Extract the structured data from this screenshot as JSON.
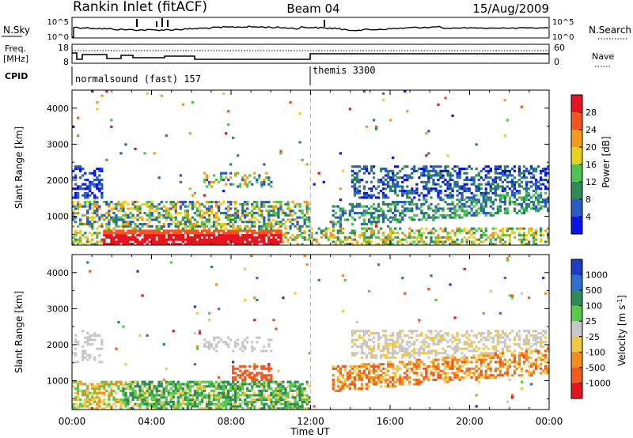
{
  "header": {
    "station": "Rankin Inlet (fitACF)",
    "beam": "Beam 04",
    "date": "15/Aug/2009"
  },
  "time_axis": {
    "xlabel": "Time UT",
    "ticks": [
      "00:00",
      "04:00",
      "08:00",
      "12:00",
      "16:00",
      "20:00",
      "00:00"
    ],
    "hours": [
      0,
      4,
      8,
      12,
      16,
      20,
      24
    ],
    "xlim": [
      0,
      24
    ],
    "marker_hour": 12
  },
  "top_strip": {
    "nsky_label": "N.Sky",
    "nsky_ticks": [
      "10^5",
      "10^0"
    ],
    "nsearch_label": "N.Search",
    "nsearch_ticks": [
      "10^5",
      "10^0"
    ],
    "freq_label_1": "Freq.",
    "freq_label_2": "[MHz]",
    "freq_ticks": [
      "18",
      "8"
    ],
    "nave_label": "Nave",
    "nave_ticks": [
      "60",
      "0"
    ],
    "cpid_label": "CPID",
    "programs": [
      {
        "name": "normalsound (fast) 157",
        "start_hour": 0
      },
      {
        "name": "themis 3300",
        "start_hour": 12
      }
    ]
  },
  "chart_data": [
    {
      "type": "heatmap",
      "title": "",
      "xlabel": "",
      "ylabel": "Slant Range [km]",
      "xlim": [
        0,
        24
      ],
      "ylim": [
        200,
        4500
      ],
      "yticks": [
        "1000",
        "2000",
        "3000",
        "4000"
      ],
      "ytick_values": [
        1000,
        2000,
        3000,
        4000
      ],
      "colorbar": {
        "label": "Power [dB]",
        "ticks": [
          "4",
          "8",
          "12",
          "16",
          "20",
          "24",
          "28"
        ],
        "colors": [
          "#0a14e6",
          "#2b5bc2",
          "#2e8b57",
          "#4fc24f",
          "#e6d21e",
          "#f49a1e",
          "#f2551e",
          "#e6141e"
        ]
      },
      "features": [
        {
          "label": "strong near-range echo",
          "hours": [
            1.5,
            10.5
          ],
          "range_km": [
            250,
            650
          ],
          "value_db": 28
        },
        {
          "label": "ionospheric band",
          "hours": [
            0,
            12
          ],
          "range_km": [
            700,
            1400
          ],
          "value_db": 14
        },
        {
          "label": "far band",
          "hours": [
            14,
            24
          ],
          "range_km": [
            1500,
            2400
          ],
          "value_db": 8
        }
      ]
    },
    {
      "type": "heatmap",
      "title": "",
      "xlabel": "Time UT",
      "ylabel": "Slant Range [km]",
      "xlim": [
        0,
        24
      ],
      "ylim": [
        200,
        4500
      ],
      "yticks": [
        "1000",
        "2000",
        "3000",
        "4000"
      ],
      "ytick_values": [
        1000,
        2000,
        3000,
        4000
      ],
      "colorbar": {
        "label": "Velocity [m s^-1]",
        "ticks": [
          "1000",
          "500",
          "100",
          "25",
          "-25",
          "-100",
          "-500",
          "-1000"
        ],
        "colors": [
          "#1e3cc8",
          "#2f6fd0",
          "#2e8b57",
          "#59c94a",
          "#c8c8c8",
          "#f2c84b",
          "#f28c1e",
          "#f25a1e",
          "#e6141e"
        ]
      },
      "features": [
        {
          "label": "positive velocity region",
          "hours": [
            3,
            12
          ],
          "range_km": [
            250,
            1000
          ],
          "value_ms": 100
        },
        {
          "label": "negative velocity band",
          "hours": [
            14,
            22
          ],
          "range_km": [
            900,
            1700
          ],
          "value_ms": -300
        },
        {
          "label": "near-zero far echoes",
          "hours": [
            14,
            24
          ],
          "range_km": [
            1700,
            2400
          ],
          "value_ms": 0
        }
      ]
    }
  ]
}
